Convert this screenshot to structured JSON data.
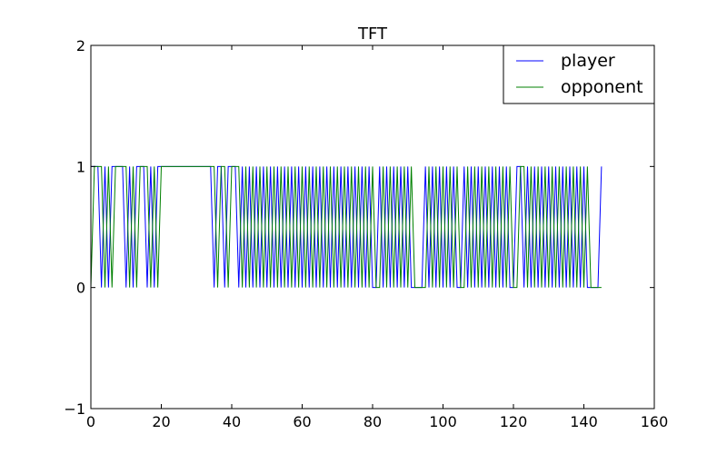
{
  "chart_data": {
    "type": "line",
    "title": "TFT",
    "xlabel": "",
    "ylabel": "",
    "xlim": [
      0,
      160
    ],
    "ylim": [
      -1,
      2
    ],
    "x_ticks": [
      0,
      20,
      40,
      60,
      80,
      100,
      120,
      140,
      160
    ],
    "y_ticks": [
      -1,
      0,
      1,
      2
    ],
    "x_tick_labels": [
      "0",
      "20",
      "40",
      "60",
      "80",
      "100",
      "120",
      "140",
      "160"
    ],
    "y_tick_labels": [
      "−1",
      "0",
      "1",
      "2"
    ],
    "grid": false,
    "legend": {
      "placement": "top-right"
    },
    "series": [
      {
        "name": "player",
        "color": "#0000ff",
        "x": [
          0,
          1,
          2,
          3,
          4,
          5,
          6,
          7,
          8,
          9,
          10,
          11,
          12,
          13,
          14,
          15,
          16,
          17,
          18,
          19,
          20,
          21,
          22,
          23,
          24,
          25,
          26,
          27,
          28,
          29,
          30,
          31,
          32,
          33,
          34,
          35,
          36,
          37,
          38,
          39,
          40,
          41,
          42,
          43,
          44,
          45,
          46,
          47,
          48,
          49,
          50,
          51,
          52,
          53,
          54,
          55,
          56,
          57,
          58,
          59,
          60,
          61,
          62,
          63,
          64,
          65,
          66,
          67,
          68,
          69,
          70,
          71,
          72,
          73,
          74,
          75,
          76,
          77,
          78,
          79,
          80,
          81,
          82,
          83,
          84,
          85,
          86,
          87,
          88,
          89,
          90,
          91,
          92,
          93,
          94,
          95,
          96,
          97,
          98,
          99,
          100,
          101,
          102,
          103,
          104,
          105,
          106,
          107,
          108,
          109,
          110,
          111,
          112,
          113,
          114,
          115,
          116,
          117,
          118,
          119,
          120,
          121,
          122,
          123,
          124,
          125,
          126,
          127,
          128,
          129,
          130,
          131,
          132,
          133,
          134,
          135,
          136,
          137,
          138,
          139,
          140,
          141,
          142,
          143,
          144,
          145
        ],
        "y": [
          1,
          1,
          1,
          0,
          1,
          0,
          1,
          1,
          1,
          1,
          0,
          1,
          0,
          1,
          1,
          1,
          0,
          1,
          0,
          1,
          1,
          1,
          1,
          1,
          1,
          1,
          1,
          1,
          1,
          1,
          1,
          1,
          1,
          1,
          1,
          0,
          1,
          1,
          0,
          1,
          1,
          1,
          0,
          1,
          0,
          1,
          0,
          1,
          0,
          1,
          0,
          1,
          0,
          1,
          0,
          1,
          0,
          1,
          0,
          1,
          0,
          1,
          0,
          1,
          0,
          1,
          0,
          1,
          0,
          1,
          0,
          1,
          0,
          1,
          0,
          1,
          0,
          1,
          0,
          1,
          0,
          0,
          1,
          0,
          1,
          0,
          1,
          0,
          1,
          0,
          1,
          0,
          0,
          0,
          0,
          1,
          0,
          1,
          0,
          1,
          0,
          1,
          0,
          1,
          0,
          0,
          1,
          0,
          1,
          0,
          1,
          0,
          1,
          0,
          1,
          0,
          1,
          0,
          1,
          0,
          0,
          1,
          1,
          0,
          1,
          0,
          1,
          0,
          1,
          0,
          1,
          0,
          1,
          0,
          1,
          0,
          1,
          0,
          1,
          0,
          1,
          0,
          0,
          0,
          0,
          1
        ]
      },
      {
        "name": "opponent",
        "color": "#008000",
        "x": [
          0,
          1,
          2,
          3,
          4,
          5,
          6,
          7,
          8,
          9,
          10,
          11,
          12,
          13,
          14,
          15,
          16,
          17,
          18,
          19,
          20,
          21,
          22,
          23,
          24,
          25,
          26,
          27,
          28,
          29,
          30,
          31,
          32,
          33,
          34,
          35,
          36,
          37,
          38,
          39,
          40,
          41,
          42,
          43,
          44,
          45,
          46,
          47,
          48,
          49,
          50,
          51,
          52,
          53,
          54,
          55,
          56,
          57,
          58,
          59,
          60,
          61,
          62,
          63,
          64,
          65,
          66,
          67,
          68,
          69,
          70,
          71,
          72,
          73,
          74,
          75,
          76,
          77,
          78,
          79,
          80,
          81,
          82,
          83,
          84,
          85,
          86,
          87,
          88,
          89,
          90,
          91,
          92,
          93,
          94,
          95,
          96,
          97,
          98,
          99,
          100,
          101,
          102,
          103,
          104,
          105,
          106,
          107,
          108,
          109,
          110,
          111,
          112,
          113,
          114,
          115,
          116,
          117,
          118,
          119,
          120,
          121,
          122,
          123,
          124,
          125,
          126,
          127,
          128,
          129,
          130,
          131,
          132,
          133,
          134,
          135,
          136,
          137,
          138,
          139,
          140,
          141,
          142,
          143,
          144,
          145
        ],
        "y": [
          0,
          1,
          1,
          1,
          0,
          1,
          0,
          1,
          1,
          1,
          1,
          0,
          1,
          0,
          1,
          1,
          1,
          0,
          1,
          0,
          1,
          1,
          1,
          1,
          1,
          1,
          1,
          1,
          1,
          1,
          1,
          1,
          1,
          1,
          1,
          1,
          0,
          1,
          1,
          0,
          1,
          1,
          1,
          0,
          1,
          0,
          1,
          0,
          1,
          0,
          1,
          0,
          1,
          0,
          1,
          0,
          1,
          0,
          1,
          0,
          1,
          0,
          1,
          0,
          1,
          0,
          1,
          0,
          1,
          0,
          1,
          0,
          1,
          0,
          1,
          0,
          1,
          0,
          1,
          0,
          1,
          0,
          0,
          1,
          0,
          1,
          0,
          1,
          0,
          1,
          0,
          1,
          0,
          0,
          0,
          0,
          1,
          0,
          1,
          0,
          1,
          0,
          1,
          0,
          1,
          0,
          0,
          1,
          0,
          1,
          0,
          1,
          0,
          1,
          0,
          1,
          0,
          1,
          0,
          1,
          0,
          0,
          1,
          1,
          0,
          1,
          0,
          1,
          0,
          1,
          0,
          1,
          0,
          1,
          0,
          1,
          0,
          1,
          0,
          1,
          0,
          1,
          0,
          0,
          0,
          0
        ]
      }
    ]
  }
}
